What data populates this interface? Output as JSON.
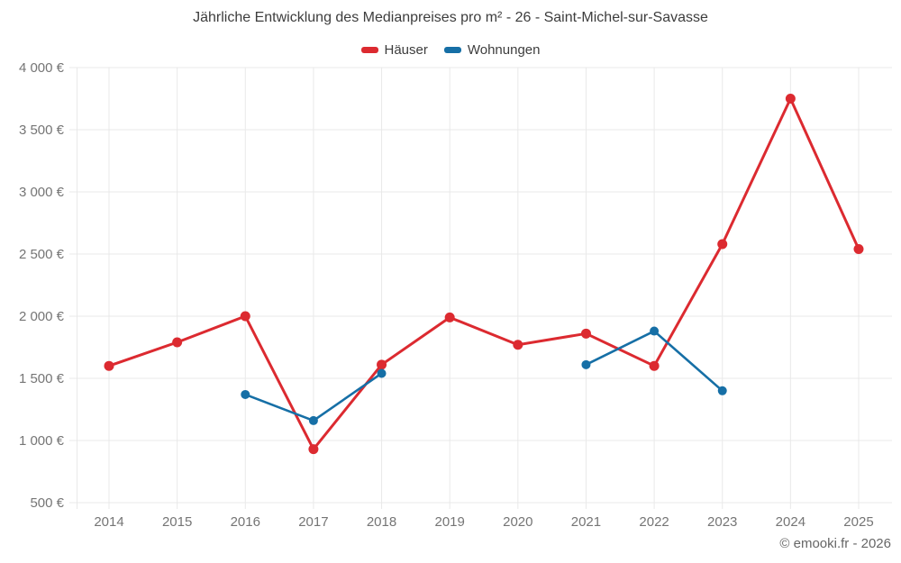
{
  "footer": {
    "watermark": "© emooki.fr - 2026"
  },
  "chart_data": {
    "type": "line",
    "title": "Jährliche Entwicklung des Medianpreises pro m² - 26 - Saint-Michel-sur-Savasse",
    "categories": [
      "2014",
      "2015",
      "2016",
      "2017",
      "2018",
      "2019",
      "2020",
      "2021",
      "2022",
      "2023",
      "2024",
      "2025"
    ],
    "series": [
      {
        "name": "Häuser",
        "color": "#dc2a30",
        "values": [
          1600,
          1790,
          2000,
          930,
          1610,
          1990,
          1770,
          1860,
          1600,
          2580,
          3750,
          2540
        ]
      },
      {
        "name": "Wohnungen",
        "color": "#166fa6",
        "values": [
          null,
          null,
          1370,
          1160,
          1540,
          null,
          null,
          1610,
          1880,
          1400,
          null,
          null
        ]
      }
    ],
    "ylim": [
      500,
      4000
    ],
    "yticks": [
      {
        "value": 500,
        "label": "500 €"
      },
      {
        "value": 1000,
        "label": "1 000 €"
      },
      {
        "value": 1500,
        "label": "1 500 €"
      },
      {
        "value": 2000,
        "label": "2 000 €"
      },
      {
        "value": 2500,
        "label": "2 500 €"
      },
      {
        "value": 3000,
        "label": "3 000 €"
      },
      {
        "value": 3500,
        "label": "3 500 €"
      },
      {
        "value": 4000,
        "label": "4 000 €"
      }
    ],
    "grid": true,
    "legend_position": "top",
    "currency_suffix": "€"
  }
}
